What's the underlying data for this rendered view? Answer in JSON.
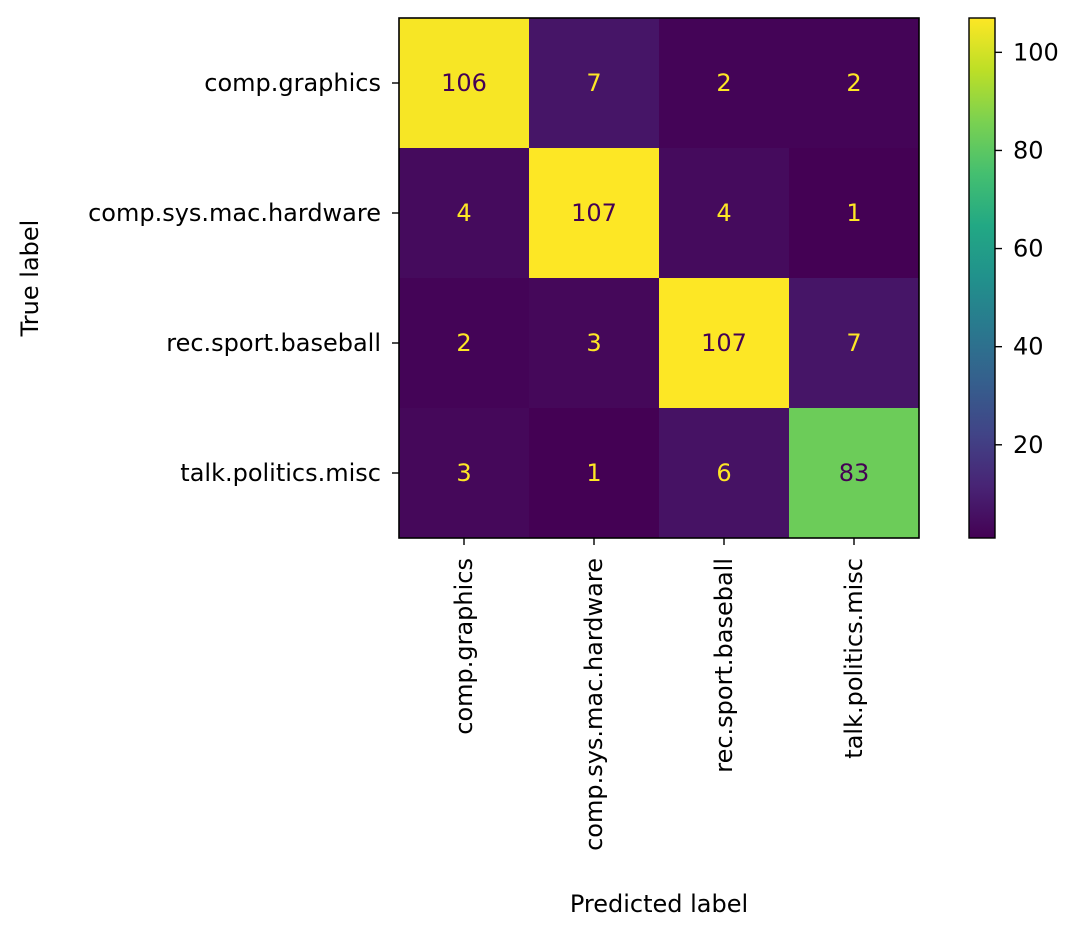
{
  "chart_data": {
    "type": "heatmap",
    "title": "",
    "xlabel": "Predicted label",
    "ylabel": "True label",
    "x_categories": [
      "comp.graphics",
      "comp.sys.mac.hardware",
      "rec.sport.baseball",
      "talk.politics.misc"
    ],
    "y_categories": [
      "comp.graphics",
      "comp.sys.mac.hardware",
      "rec.sport.baseball",
      "talk.politics.misc"
    ],
    "values": [
      [
        106,
        7,
        2,
        2
      ],
      [
        4,
        107,
        4,
        1
      ],
      [
        2,
        3,
        107,
        7
      ],
      [
        3,
        1,
        6,
        83
      ]
    ],
    "colormap": "viridis",
    "color_range": [
      1,
      107
    ],
    "colorbar_ticks": [
      20,
      40,
      60,
      80,
      100
    ],
    "label_dark_color": "#440154",
    "label_light_color": "#fde725",
    "grid": false
  }
}
